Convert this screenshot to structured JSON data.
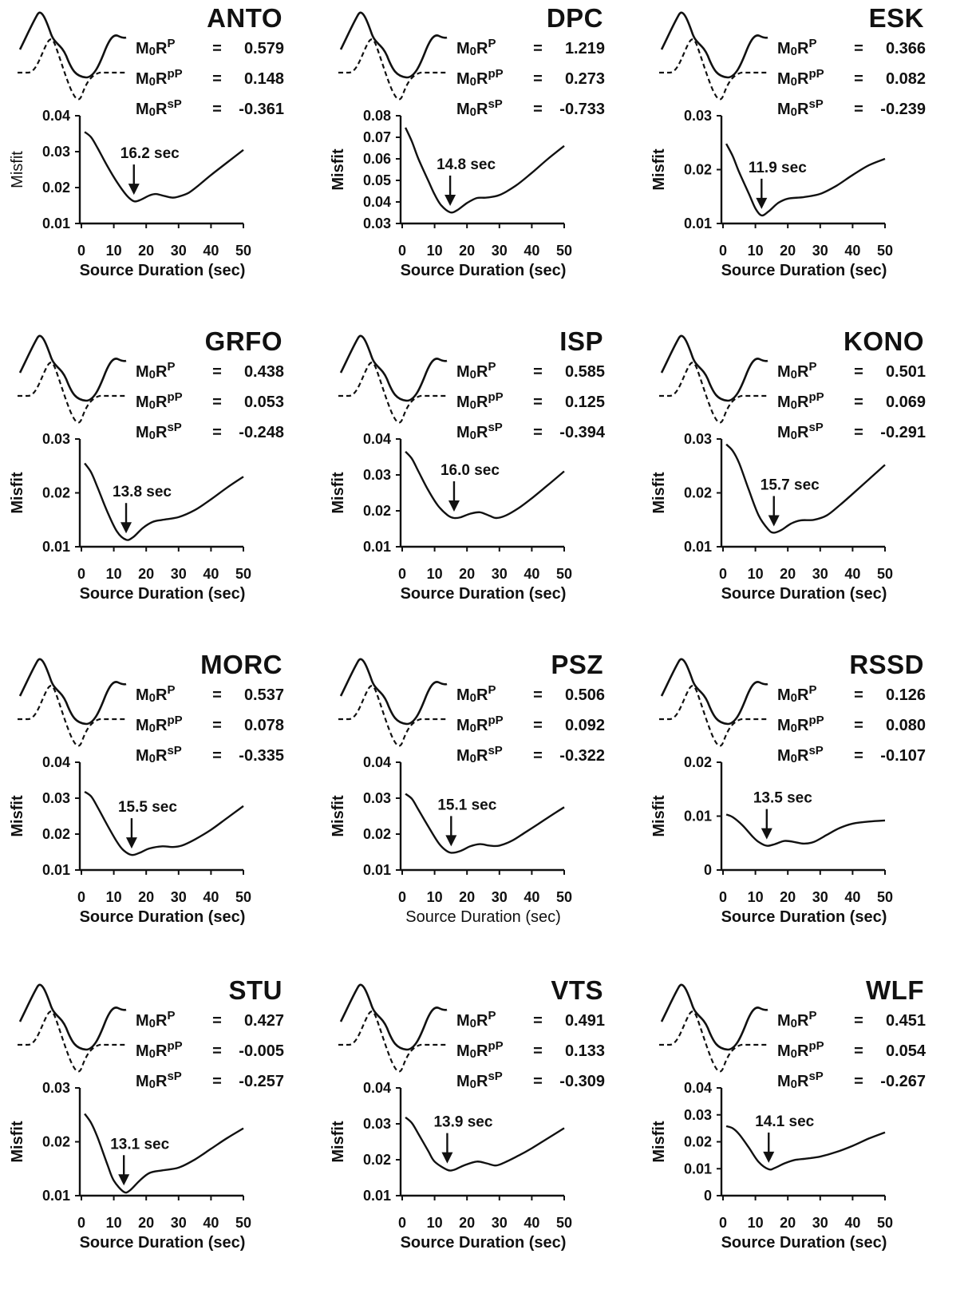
{
  "chart_data": [
    {
      "type": "line",
      "station": "ANTO",
      "coef": [
        "0.579",
        "0.148",
        "-0.361"
      ],
      "ylim": [
        0.01,
        0.04
      ],
      "yticks": [
        "0.01",
        "0.02",
        "0.03",
        "0.04"
      ],
      "x": [
        1,
        3,
        5,
        8,
        11,
        14,
        16.2,
        18,
        21,
        23,
        25,
        28,
        30,
        33,
        36,
        40,
        45,
        50
      ],
      "y": [
        0.0355,
        0.034,
        0.031,
        0.026,
        0.0215,
        0.0178,
        0.0162,
        0.0165,
        0.0178,
        0.0182,
        0.0178,
        0.0172,
        0.0175,
        0.0185,
        0.0205,
        0.0235,
        0.027,
        0.0305
      ],
      "annotation": "16.2 sec",
      "min_x": 16.2,
      "xlabel": "Source Duration (sec)",
      "ylabel": "Misfit",
      "xlabel_bold": true,
      "ylabel_bold": false
    },
    {
      "type": "line",
      "station": "DPC",
      "coef": [
        "1.219",
        "0.273",
        "-0.733"
      ],
      "ylim": [
        0.03,
        0.08
      ],
      "yticks": [
        "0.03",
        "0.04",
        "0.05",
        "0.06",
        "0.07",
        "0.08"
      ],
      "x": [
        1,
        3,
        5,
        8,
        10,
        12,
        14.8,
        17,
        20,
        23,
        26,
        30,
        35,
        40,
        45,
        50
      ],
      "y": [
        0.0745,
        0.068,
        0.06,
        0.05,
        0.0435,
        0.0385,
        0.0352,
        0.0362,
        0.0395,
        0.0418,
        0.042,
        0.0432,
        0.0475,
        0.0535,
        0.06,
        0.066
      ],
      "annotation": "14.8 sec",
      "min_x": 14.8,
      "xlabel": "Source Duration (sec)",
      "ylabel": "Misfit",
      "xlabel_bold": true,
      "ylabel_bold": true
    },
    {
      "type": "line",
      "station": "ESK",
      "coef": [
        "0.366",
        "0.082",
        "-0.239"
      ],
      "ylim": [
        0.01,
        0.03
      ],
      "yticks": [
        "0.01",
        "0.02",
        "0.03"
      ],
      "x": [
        1,
        3,
        5,
        8,
        10,
        11.9,
        14,
        17,
        20,
        25,
        30,
        35,
        40,
        45,
        50
      ],
      "y": [
        0.0248,
        0.0225,
        0.0195,
        0.0155,
        0.0128,
        0.0115,
        0.0122,
        0.0138,
        0.0146,
        0.0149,
        0.0155,
        0.017,
        0.019,
        0.0208,
        0.022
      ],
      "annotation": "11.9 sec",
      "min_x": 11.9,
      "xlabel": "Source Duration (sec)",
      "ylabel": "Misfit",
      "xlabel_bold": true,
      "ylabel_bold": true
    },
    {
      "type": "line",
      "station": "GRFO",
      "coef": [
        "0.438",
        "0.053",
        "-0.248"
      ],
      "ylim": [
        0.01,
        0.03
      ],
      "yticks": [
        "0.01",
        "0.02",
        "0.03"
      ],
      "x": [
        1,
        3,
        5,
        8,
        11,
        13.8,
        16,
        19,
        22,
        25,
        30,
        35,
        40,
        45,
        50
      ],
      "y": [
        0.0255,
        0.0238,
        0.021,
        0.0165,
        0.0128,
        0.0113,
        0.0118,
        0.0135,
        0.0146,
        0.015,
        0.0155,
        0.0168,
        0.0188,
        0.021,
        0.023
      ],
      "annotation": "13.8 sec",
      "min_x": 13.8,
      "xlabel": "Source Duration (sec)",
      "ylabel": "Misfit",
      "xlabel_bold": true,
      "ylabel_bold": true
    },
    {
      "type": "line",
      "station": "ISP",
      "coef": [
        "0.585",
        "0.125",
        "-0.394"
      ],
      "ylim": [
        0.01,
        0.04
      ],
      "yticks": [
        "0.01",
        "0.02",
        "0.03",
        "0.04"
      ],
      "x": [
        1,
        3,
        5,
        8,
        11,
        14,
        16,
        18,
        21,
        24,
        27,
        29,
        32,
        36,
        40,
        45,
        50
      ],
      "y": [
        0.0365,
        0.0345,
        0.031,
        0.0258,
        0.0215,
        0.0188,
        0.018,
        0.0182,
        0.0192,
        0.0196,
        0.0186,
        0.018,
        0.0187,
        0.0208,
        0.0235,
        0.0272,
        0.031
      ],
      "annotation": "16.0 sec",
      "min_x": 16.0,
      "xlabel": "Source Duration (sec)",
      "ylabel": "Misfit",
      "xlabel_bold": true,
      "ylabel_bold": true
    },
    {
      "type": "line",
      "station": "KONO",
      "coef": [
        "0.501",
        "0.069",
        "-0.291"
      ],
      "ylim": [
        0.01,
        0.03
      ],
      "yticks": [
        "0.01",
        "0.02",
        "0.03"
      ],
      "x": [
        1,
        3,
        5,
        8,
        11,
        14,
        15.7,
        18,
        21,
        24,
        28,
        32,
        36,
        40,
        45,
        50
      ],
      "y": [
        0.029,
        0.0278,
        0.0255,
        0.0205,
        0.0158,
        0.0132,
        0.0126,
        0.0131,
        0.0143,
        0.0149,
        0.015,
        0.0158,
        0.0177,
        0.0198,
        0.0225,
        0.0252
      ],
      "annotation": "15.7 sec",
      "min_x": 15.7,
      "xlabel": "Source Duration (sec)",
      "ylabel": "Misfit",
      "xlabel_bold": true,
      "ylabel_bold": true
    },
    {
      "type": "line",
      "station": "MORC",
      "coef": [
        "0.537",
        "0.078",
        "-0.335"
      ],
      "ylim": [
        0.01,
        0.04
      ],
      "yticks": [
        "0.01",
        "0.02",
        "0.03",
        "0.04"
      ],
      "x": [
        1,
        3,
        5,
        8,
        11,
        13,
        15.5,
        18,
        21,
        25,
        28,
        31,
        35,
        40,
        45,
        50
      ],
      "y": [
        0.0318,
        0.0305,
        0.0275,
        0.0225,
        0.0178,
        0.0155,
        0.0142,
        0.0148,
        0.016,
        0.0166,
        0.0164,
        0.0168,
        0.0185,
        0.0212,
        0.0245,
        0.0278
      ],
      "annotation": "15.5 sec",
      "min_x": 15.5,
      "xlabel": "Source Duration (sec)",
      "ylabel": "Misfit",
      "xlabel_bold": true,
      "ylabel_bold": true
    },
    {
      "type": "line",
      "station": "PSZ",
      "coef": [
        "0.506",
        "0.092",
        "-0.322"
      ],
      "ylim": [
        0.01,
        0.04
      ],
      "yticks": [
        "0.01",
        "0.02",
        "0.03",
        "0.04"
      ],
      "x": [
        1,
        3,
        5,
        8,
        11,
        13,
        15.1,
        18,
        21,
        24,
        27,
        30,
        34,
        38,
        42,
        46,
        50
      ],
      "y": [
        0.0312,
        0.0298,
        0.0268,
        0.0222,
        0.0178,
        0.0158,
        0.0148,
        0.0153,
        0.0166,
        0.0172,
        0.0168,
        0.0168,
        0.0182,
        0.0205,
        0.0228,
        0.0252,
        0.0275
      ],
      "annotation": "15.1 sec",
      "min_x": 15.1,
      "xlabel": "Source Duration (sec)",
      "ylabel": "Misfit",
      "xlabel_bold": false,
      "ylabel_bold": true
    },
    {
      "type": "line",
      "station": "RSSD",
      "coef": [
        "0.126",
        "0.080",
        "-0.107"
      ],
      "ylim": [
        0,
        0.02
      ],
      "yticks": [
        "0",
        "0.01",
        "0.02"
      ],
      "x": [
        1,
        3,
        6,
        9,
        11,
        13.5,
        16,
        19,
        22,
        25,
        28,
        32,
        36,
        40,
        45,
        50
      ],
      "y": [
        0.0103,
        0.0098,
        0.0083,
        0.0063,
        0.0052,
        0.0045,
        0.0048,
        0.0054,
        0.0052,
        0.0049,
        0.0052,
        0.0065,
        0.0078,
        0.0086,
        0.009,
        0.0092
      ],
      "annotation": "13.5 sec",
      "min_x": 13.5,
      "xlabel": "Source Duration (sec)",
      "ylabel": "Misfit",
      "xlabel_bold": true,
      "ylabel_bold": true
    },
    {
      "type": "line",
      "station": "STU",
      "coef": [
        "0.427",
        "-0.005",
        "-0.257"
      ],
      "ylim": [
        0.01,
        0.03
      ],
      "yticks": [
        "0.01",
        "0.02",
        "0.03"
      ],
      "x": [
        1,
        3,
        5,
        8,
        10,
        13.1,
        15,
        18,
        21,
        25,
        30,
        35,
        40,
        45,
        50
      ],
      "y": [
        0.0252,
        0.0235,
        0.0208,
        0.0158,
        0.0128,
        0.0107,
        0.011,
        0.0128,
        0.0142,
        0.0147,
        0.0152,
        0.0167,
        0.0187,
        0.0207,
        0.0225
      ],
      "annotation": "13.1 sec",
      "min_x": 13.1,
      "xlabel": "Source Duration (sec)",
      "ylabel": "Misfit",
      "xlabel_bold": true,
      "ylabel_bold": true
    },
    {
      "type": "line",
      "station": "VTS",
      "coef": [
        "0.491",
        "0.133",
        "-0.309"
      ],
      "ylim": [
        0.01,
        0.04
      ],
      "yticks": [
        "0.01",
        "0.02",
        "0.03",
        "0.04"
      ],
      "x": [
        1,
        3,
        5,
        8,
        10,
        13.9,
        16,
        19,
        23,
        26,
        29,
        32,
        36,
        40,
        45,
        50
      ],
      "y": [
        0.0318,
        0.0302,
        0.0272,
        0.0225,
        0.0195,
        0.0172,
        0.0172,
        0.0184,
        0.0195,
        0.019,
        0.0184,
        0.0194,
        0.0212,
        0.0232,
        0.026,
        0.0288
      ],
      "annotation": "13.9 sec",
      "min_x": 13.9,
      "xlabel": "Source Duration (sec)",
      "ylabel": "Misfit",
      "xlabel_bold": true,
      "ylabel_bold": true
    },
    {
      "type": "line",
      "station": "WLF",
      "coef": [
        "0.451",
        "0.054",
        "-0.267"
      ],
      "ylim": [
        0,
        0.04
      ],
      "yticks": [
        "0",
        "0.01",
        "0.02",
        "0.03",
        "0.04"
      ],
      "x": [
        1,
        3,
        5,
        8,
        11,
        14.1,
        16,
        19,
        22,
        26,
        30,
        35,
        40,
        45,
        50
      ],
      "y": [
        0.0258,
        0.025,
        0.0228,
        0.0178,
        0.0125,
        0.0098,
        0.0103,
        0.012,
        0.0132,
        0.0138,
        0.0145,
        0.0162,
        0.0185,
        0.0212,
        0.0235
      ],
      "annotation": "14.1 sec",
      "min_x": 14.1,
      "xlabel": "Source Duration (sec)",
      "ylabel": "Misfit",
      "xlabel_bold": true,
      "ylabel_bold": true
    }
  ],
  "coef_labels": {
    "base": "M",
    "sub": "0",
    "r": "R",
    "sup": [
      "P",
      "pP",
      "sP"
    ],
    "eq": "="
  },
  "xticks": [
    "0",
    "10",
    "20",
    "30",
    "40",
    "50"
  ]
}
